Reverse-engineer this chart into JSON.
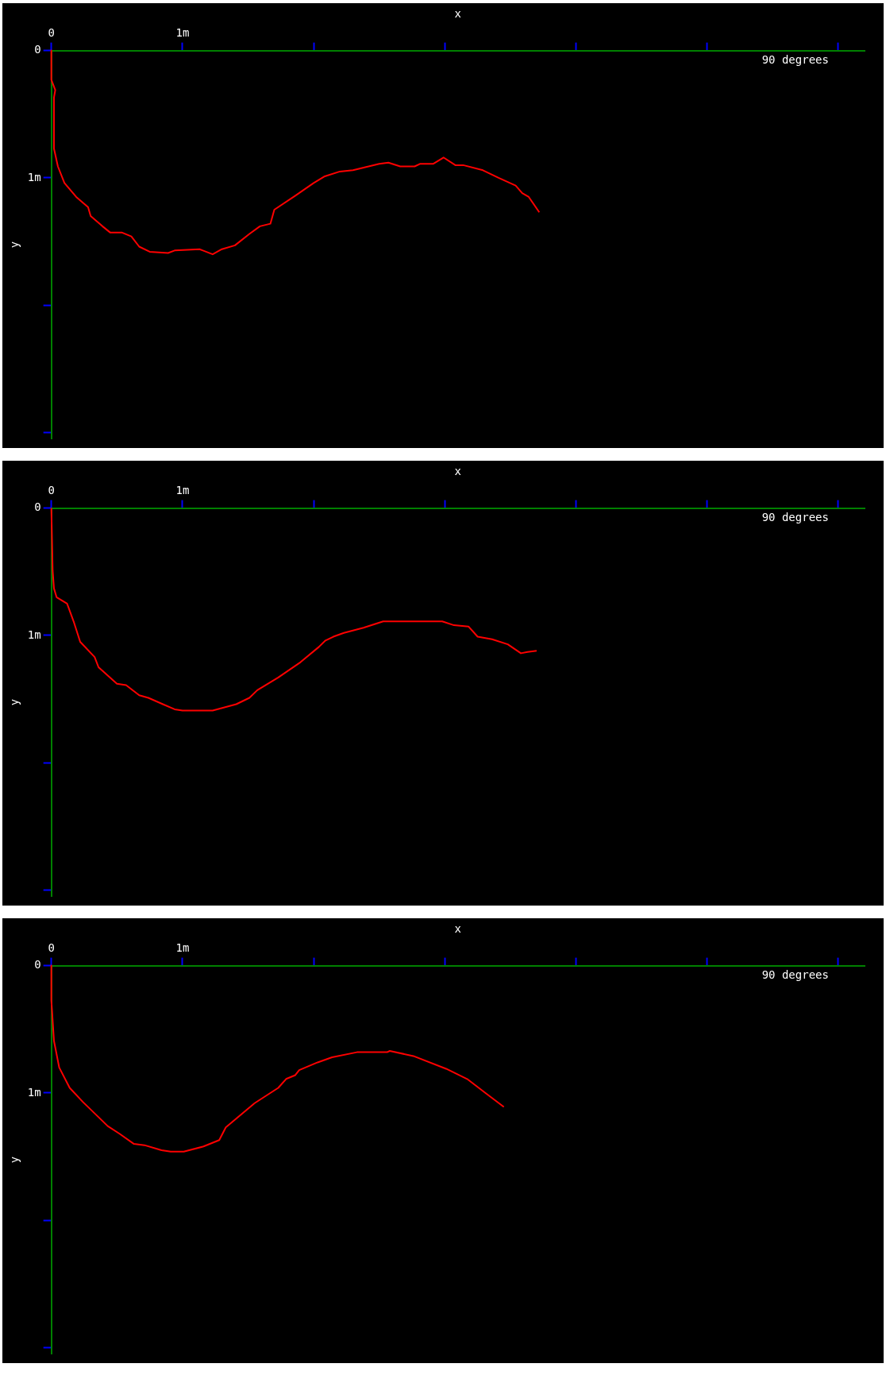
{
  "chart_data": [
    {
      "type": "line",
      "xlabel": "x",
      "ylabel": "y",
      "annotations": [
        "90 degrees"
      ],
      "color": "#ff0000",
      "grid": false,
      "legend": false,
      "x": [
        0,
        0,
        0.03,
        0.02,
        0.02,
        0.05,
        0.1,
        0.19,
        0.28,
        0.3,
        0.39,
        0.45,
        0.54,
        0.61,
        0.67,
        0.75,
        0.89,
        0.94,
        1.13,
        1.23,
        1.3,
        1.4,
        1.51,
        1.59,
        1.67,
        1.7,
        1.86,
        2.0,
        2.08,
        2.2,
        2.3,
        2.5,
        2.57,
        2.66,
        2.77,
        2.81,
        2.91,
        2.99,
        3.08,
        3.14,
        3.29,
        3.41,
        3.54,
        3.59,
        3.64,
        3.72
      ],
      "values": [
        0,
        0.23,
        0.31,
        0.37,
        0.77,
        0.91,
        1.04,
        1.15,
        1.23,
        1.3,
        1.38,
        1.43,
        1.43,
        1.46,
        1.54,
        1.58,
        1.59,
        1.57,
        1.56,
        1.6,
        1.56,
        1.53,
        1.44,
        1.38,
        1.36,
        1.25,
        1.14,
        1.04,
        0.99,
        0.95,
        0.94,
        0.89,
        0.88,
        0.91,
        0.91,
        0.89,
        0.89,
        0.84,
        0.9,
        0.9,
        0.94,
        1.0,
        1.06,
        1.12,
        1.15,
        1.27
      ],
      "xlim": [
        0,
        6.2
      ],
      "ylim": [
        3.05,
        0
      ],
      "xticks": [
        {
          "value": 0,
          "label": "0"
        },
        {
          "value": 1,
          "label": "1m"
        },
        {
          "value": 2,
          "label": null
        },
        {
          "value": 3,
          "label": null
        },
        {
          "value": 4,
          "label": null
        },
        {
          "value": 5,
          "label": null
        },
        {
          "value": 6,
          "label": null
        }
      ],
      "yticks": [
        {
          "value": 0,
          "label": "0"
        },
        {
          "value": 1,
          "label": "1m"
        },
        {
          "value": 2,
          "label": null
        },
        {
          "value": 3,
          "label": null
        }
      ]
    },
    {
      "type": "line",
      "xlabel": "x",
      "ylabel": "y",
      "annotations": [
        "90 degrees"
      ],
      "color": "#ff0000",
      "grid": false,
      "legend": false,
      "x": [
        0,
        0.01,
        0.02,
        0.04,
        0.12,
        0.17,
        0.22,
        0.33,
        0.36,
        0.5,
        0.57,
        0.67,
        0.74,
        0.85,
        0.94,
        1.0,
        1.23,
        1.41,
        1.51,
        1.57,
        1.73,
        1.9,
        2.04,
        2.09,
        2.15,
        2.23,
        2.38,
        2.53,
        2.98,
        3.07,
        3.18,
        3.25,
        3.36,
        3.48,
        3.58,
        3.63,
        3.7
      ],
      "values": [
        0,
        0.49,
        0.63,
        0.7,
        0.75,
        0.89,
        1.05,
        1.17,
        1.25,
        1.38,
        1.39,
        1.47,
        1.49,
        1.54,
        1.58,
        1.59,
        1.59,
        1.54,
        1.49,
        1.43,
        1.33,
        1.21,
        1.09,
        1.04,
        1.01,
        0.98,
        0.94,
        0.89,
        0.89,
        0.92,
        0.93,
        1.01,
        1.03,
        1.07,
        1.14,
        1.13,
        1.12
      ],
      "xlim": [
        0,
        6.2
      ],
      "ylim": [
        3.05,
        0
      ],
      "xticks": [
        {
          "value": 0,
          "label": "0"
        },
        {
          "value": 1,
          "label": "1m"
        },
        {
          "value": 2,
          "label": null
        },
        {
          "value": 3,
          "label": null
        },
        {
          "value": 4,
          "label": null
        },
        {
          "value": 5,
          "label": null
        },
        {
          "value": 6,
          "label": null
        }
      ],
      "yticks": [
        {
          "value": 0,
          "label": "0"
        },
        {
          "value": 1,
          "label": "1m"
        },
        {
          "value": 2,
          "label": null
        },
        {
          "value": 3,
          "label": null
        }
      ]
    },
    {
      "type": "line",
      "xlabel": "x",
      "ylabel": "y",
      "annotations": [
        "90 degrees"
      ],
      "color": "#ff0000",
      "grid": false,
      "legend": false,
      "x": [
        0,
        0,
        0.02,
        0.06,
        0.14,
        0.24,
        0.43,
        0.52,
        0.63,
        0.71,
        0.84,
        0.91,
        1.01,
        1.16,
        1.28,
        1.33,
        1.55,
        1.73,
        1.79,
        1.86,
        1.89,
        2.03,
        2.14,
        2.33,
        2.56,
        2.58,
        2.76,
        3.01,
        3.17,
        3.31,
        3.45
      ],
      "values": [
        0,
        0.27,
        0.59,
        0.8,
        0.96,
        1.07,
        1.26,
        1.32,
        1.4,
        1.41,
        1.45,
        1.46,
        1.46,
        1.42,
        1.37,
        1.27,
        1.08,
        0.96,
        0.89,
        0.86,
        0.82,
        0.76,
        0.72,
        0.68,
        0.68,
        0.67,
        0.71,
        0.81,
        0.89,
        1.0,
        1.11
      ],
      "xlim": [
        0,
        6.2
      ],
      "ylim": [
        3.05,
        0
      ],
      "xticks": [
        {
          "value": 0,
          "label": "0"
        },
        {
          "value": 1,
          "label": "1m"
        },
        {
          "value": 2,
          "label": null
        },
        {
          "value": 3,
          "label": null
        },
        {
          "value": 4,
          "label": null
        },
        {
          "value": 5,
          "label": null
        },
        {
          "value": 6,
          "label": null
        }
      ],
      "yticks": [
        {
          "value": 0,
          "label": "0"
        },
        {
          "value": 1,
          "label": "1m"
        },
        {
          "value": 2,
          "label": null
        },
        {
          "value": 3,
          "label": null
        }
      ]
    }
  ]
}
